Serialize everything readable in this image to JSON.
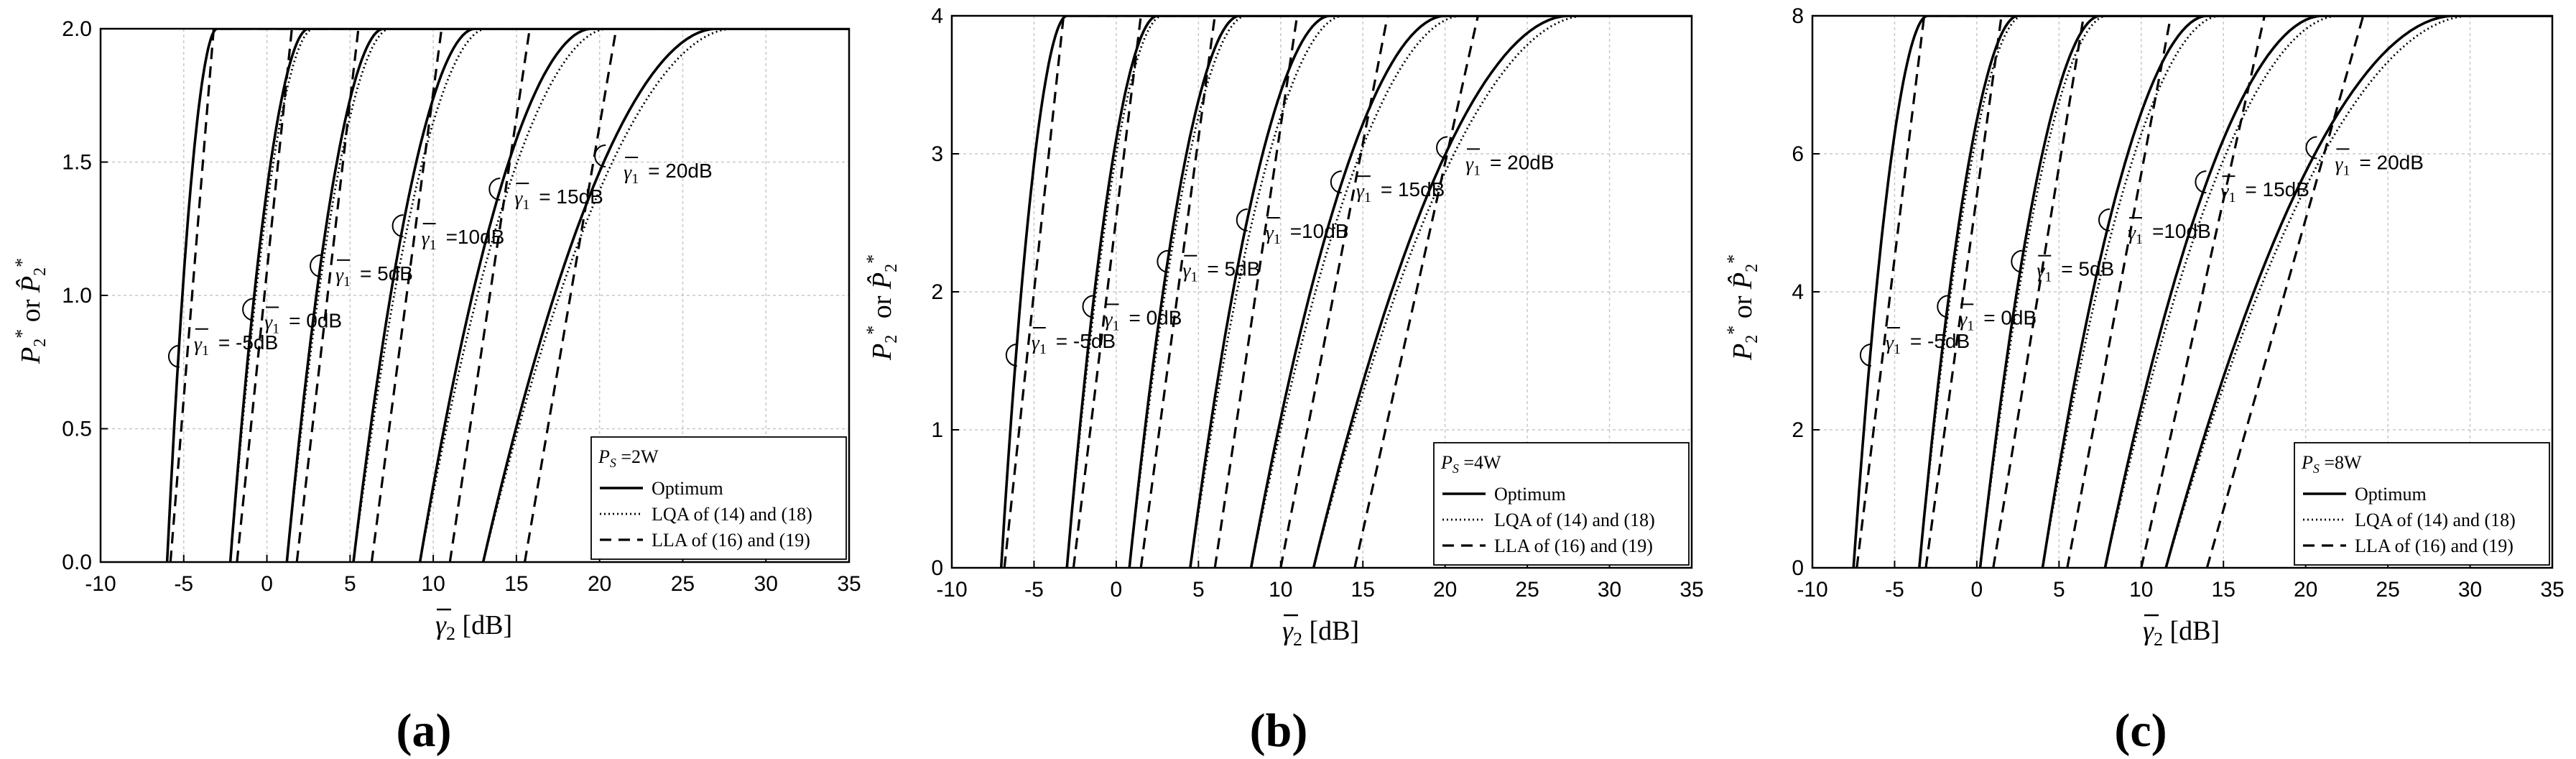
{
  "panel_labels": [
    "(a)",
    "(b)",
    "(c)"
  ],
  "chart_data": [
    {
      "type": "line",
      "panel_label": "(a)",
      "xlabel": "γ̄₂ [dB]",
      "ylabel": "P*₂ or P̂*₂",
      "xlim": [
        -10,
        35
      ],
      "ylim": [
        0,
        2.0
      ],
      "xticks": [
        -10,
        -5,
        0,
        5,
        10,
        15,
        20,
        25,
        30,
        35
      ],
      "yticks": [
        0.0,
        0.5,
        1.0,
        1.5,
        2.0
      ],
      "ytick_labels": [
        "0.0",
        "0.5",
        "1.0",
        "1.5",
        "2.0"
      ],
      "grid": true,
      "legend_position": "bottom-right",
      "legend_title": "=2W",
      "legend": [
        "Optimum",
        "LQA of (14) and (18)",
        "LLA of (16) and (19)"
      ],
      "annotations": [
        "= -5dB",
        "= 0dB",
        "= 5dB",
        "=10dB",
        "= 15dB",
        "= 20dB"
      ],
      "families": [
        {
          "gamma1_dB": -5,
          "optimum": {
            "x0": -6.0,
            "x1": -3.0
          },
          "lqa": {
            "x0": -6.0,
            "x1": -3.0
          },
          "lla": {
            "x0": -5.8,
            "x1": -3.2
          }
        },
        {
          "gamma1_dB": 0,
          "optimum": {
            "x0": -2.2,
            "x1": 2.5
          },
          "lqa": {
            "x0": -2.2,
            "x1": 2.8
          },
          "lla": {
            "x0": -1.8,
            "x1": 1.5
          }
        },
        {
          "gamma1_dB": 5,
          "optimum": {
            "x0": 1.2,
            "x1": 7.0
          },
          "lqa": {
            "x0": 1.2,
            "x1": 7.4
          },
          "lla": {
            "x0": 1.8,
            "x1": 5.5
          }
        },
        {
          "gamma1_dB": 10,
          "optimum": {
            "x0": 5.2,
            "x1": 12.5
          },
          "lqa": {
            "x0": 5.2,
            "x1": 13.2
          },
          "lla": {
            "x0": 6.3,
            "x1": 10.5
          }
        },
        {
          "gamma1_dB": 15,
          "optimum": {
            "x0": 9.2,
            "x1": 19.5
          },
          "lqa": {
            "x0": 9.2,
            "x1": 20.5
          },
          "lla": {
            "x0": 11.0,
            "x1": 15.8
          }
        },
        {
          "gamma1_dB": 20,
          "optimum": {
            "x0": 13.0,
            "x1": 27.0
          },
          "lqa": {
            "x0": 13.0,
            "x1": 28.0
          },
          "lla": {
            "x0": 15.5,
            "x1": 21.0
          }
        }
      ]
    },
    {
      "type": "line",
      "panel_label": "(b)",
      "xlabel": "γ̄₂ [dB]",
      "ylabel": "P*₂ or P̂*₂",
      "xlim": [
        -10,
        35
      ],
      "ylim": [
        0,
        4
      ],
      "xticks": [
        -10,
        -5,
        0,
        5,
        10,
        15,
        20,
        25,
        30,
        35
      ],
      "yticks": [
        0,
        1,
        2,
        3,
        4
      ],
      "ytick_labels": [
        "0",
        "1",
        "2",
        "3",
        "4"
      ],
      "grid": true,
      "legend_position": "bottom-right",
      "legend_title": "=4W",
      "legend": [
        "Optimum",
        "LQA of (14) and (18)",
        "LLA of (16) and (19)"
      ],
      "annotations": [
        "= -5dB",
        "= 0dB",
        "= 5dB",
        "=10dB",
        "= 15dB",
        "= 20dB"
      ],
      "families": [
        {
          "gamma1_dB": -5,
          "optimum": {
            "x0": -7.0,
            "x1": -3.0
          },
          "lqa": {
            "x0": -7.0,
            "x1": -3.0
          },
          "lla": {
            "x0": -6.8,
            "x1": -3.2
          }
        },
        {
          "gamma1_dB": 0,
          "optimum": {
            "x0": -3.0,
            "x1": 2.5
          },
          "lqa": {
            "x0": -3.0,
            "x1": 2.8
          },
          "lla": {
            "x0": -2.6,
            "x1": 1.5
          }
        },
        {
          "gamma1_dB": 5,
          "optimum": {
            "x0": 0.8,
            "x1": 7.5
          },
          "lqa": {
            "x0": 0.8,
            "x1": 7.9
          },
          "lla": {
            "x0": 1.5,
            "x1": 6.0
          }
        },
        {
          "gamma1_dB": 10,
          "optimum": {
            "x0": 4.5,
            "x1": 13.0
          },
          "lqa": {
            "x0": 4.5,
            "x1": 13.8
          },
          "lla": {
            "x0": 6.0,
            "x1": 11.0
          }
        },
        {
          "gamma1_dB": 15,
          "optimum": {
            "x0": 8.2,
            "x1": 20.0
          },
          "lqa": {
            "x0": 8.2,
            "x1": 21.0
          },
          "lla": {
            "x0": 10.0,
            "x1": 16.5
          }
        },
        {
          "gamma1_dB": 20,
          "optimum": {
            "x0": 12.0,
            "x1": 27.5
          },
          "lqa": {
            "x0": 12.0,
            "x1": 28.5
          },
          "lla": {
            "x0": 14.5,
            "x1": 22.0
          }
        }
      ]
    },
    {
      "type": "line",
      "panel_label": "(c)",
      "xlabel": "γ̄₂ [dB]",
      "ylabel": "P*₂ or P̂*₂",
      "xlim": [
        -10,
        35
      ],
      "ylim": [
        0,
        8
      ],
      "xticks": [
        -10,
        -5,
        0,
        5,
        10,
        15,
        20,
        25,
        30,
        35
      ],
      "yticks": [
        0,
        2,
        4,
        6,
        8
      ],
      "ytick_labels": [
        "0",
        "2",
        "4",
        "6",
        "8"
      ],
      "grid": true,
      "legend_position": "bottom-right",
      "legend_title": "=8W",
      "legend": [
        "Optimum",
        "LQA of (14) and (18)",
        "LLA of (16) and (19)"
      ],
      "annotations": [
        "= -5dB",
        "= 0dB",
        "= 5dB",
        "=10dB",
        "= 15dB",
        "= 20dB"
      ],
      "families": [
        {
          "gamma1_dB": -5,
          "optimum": {
            "x0": -7.5,
            "x1": -3.0
          },
          "lqa": {
            "x0": -7.5,
            "x1": -3.0
          },
          "lla": {
            "x0": -7.3,
            "x1": -3.2
          }
        },
        {
          "gamma1_dB": 0,
          "optimum": {
            "x0": -3.5,
            "x1": 2.5
          },
          "lqa": {
            "x0": -3.5,
            "x1": 2.8
          },
          "lla": {
            "x0": -3.1,
            "x1": 1.5
          }
        },
        {
          "gamma1_dB": 5,
          "optimum": {
            "x0": 0.2,
            "x1": 7.5
          },
          "lqa": {
            "x0": 0.2,
            "x1": 7.9
          },
          "lla": {
            "x0": 1.0,
            "x1": 6.5
          }
        },
        {
          "gamma1_dB": 10,
          "optimum": {
            "x0": 4.0,
            "x1": 14.0
          },
          "lqa": {
            "x0": 4.0,
            "x1": 14.8
          },
          "lla": {
            "x0": 5.5,
            "x1": 11.8
          }
        },
        {
          "gamma1_dB": 15,
          "optimum": {
            "x0": 7.8,
            "x1": 21.0
          },
          "lqa": {
            "x0": 7.8,
            "x1": 22.0
          },
          "lla": {
            "x0": 10.0,
            "x1": 17.5
          }
        },
        {
          "gamma1_dB": 20,
          "optimum": {
            "x0": 11.5,
            "x1": 29.0
          },
          "lqa": {
            "x0": 11.5,
            "x1": 30.0
          },
          "lla": {
            "x0": 14.0,
            "x1": 23.5
          }
        }
      ]
    }
  ]
}
